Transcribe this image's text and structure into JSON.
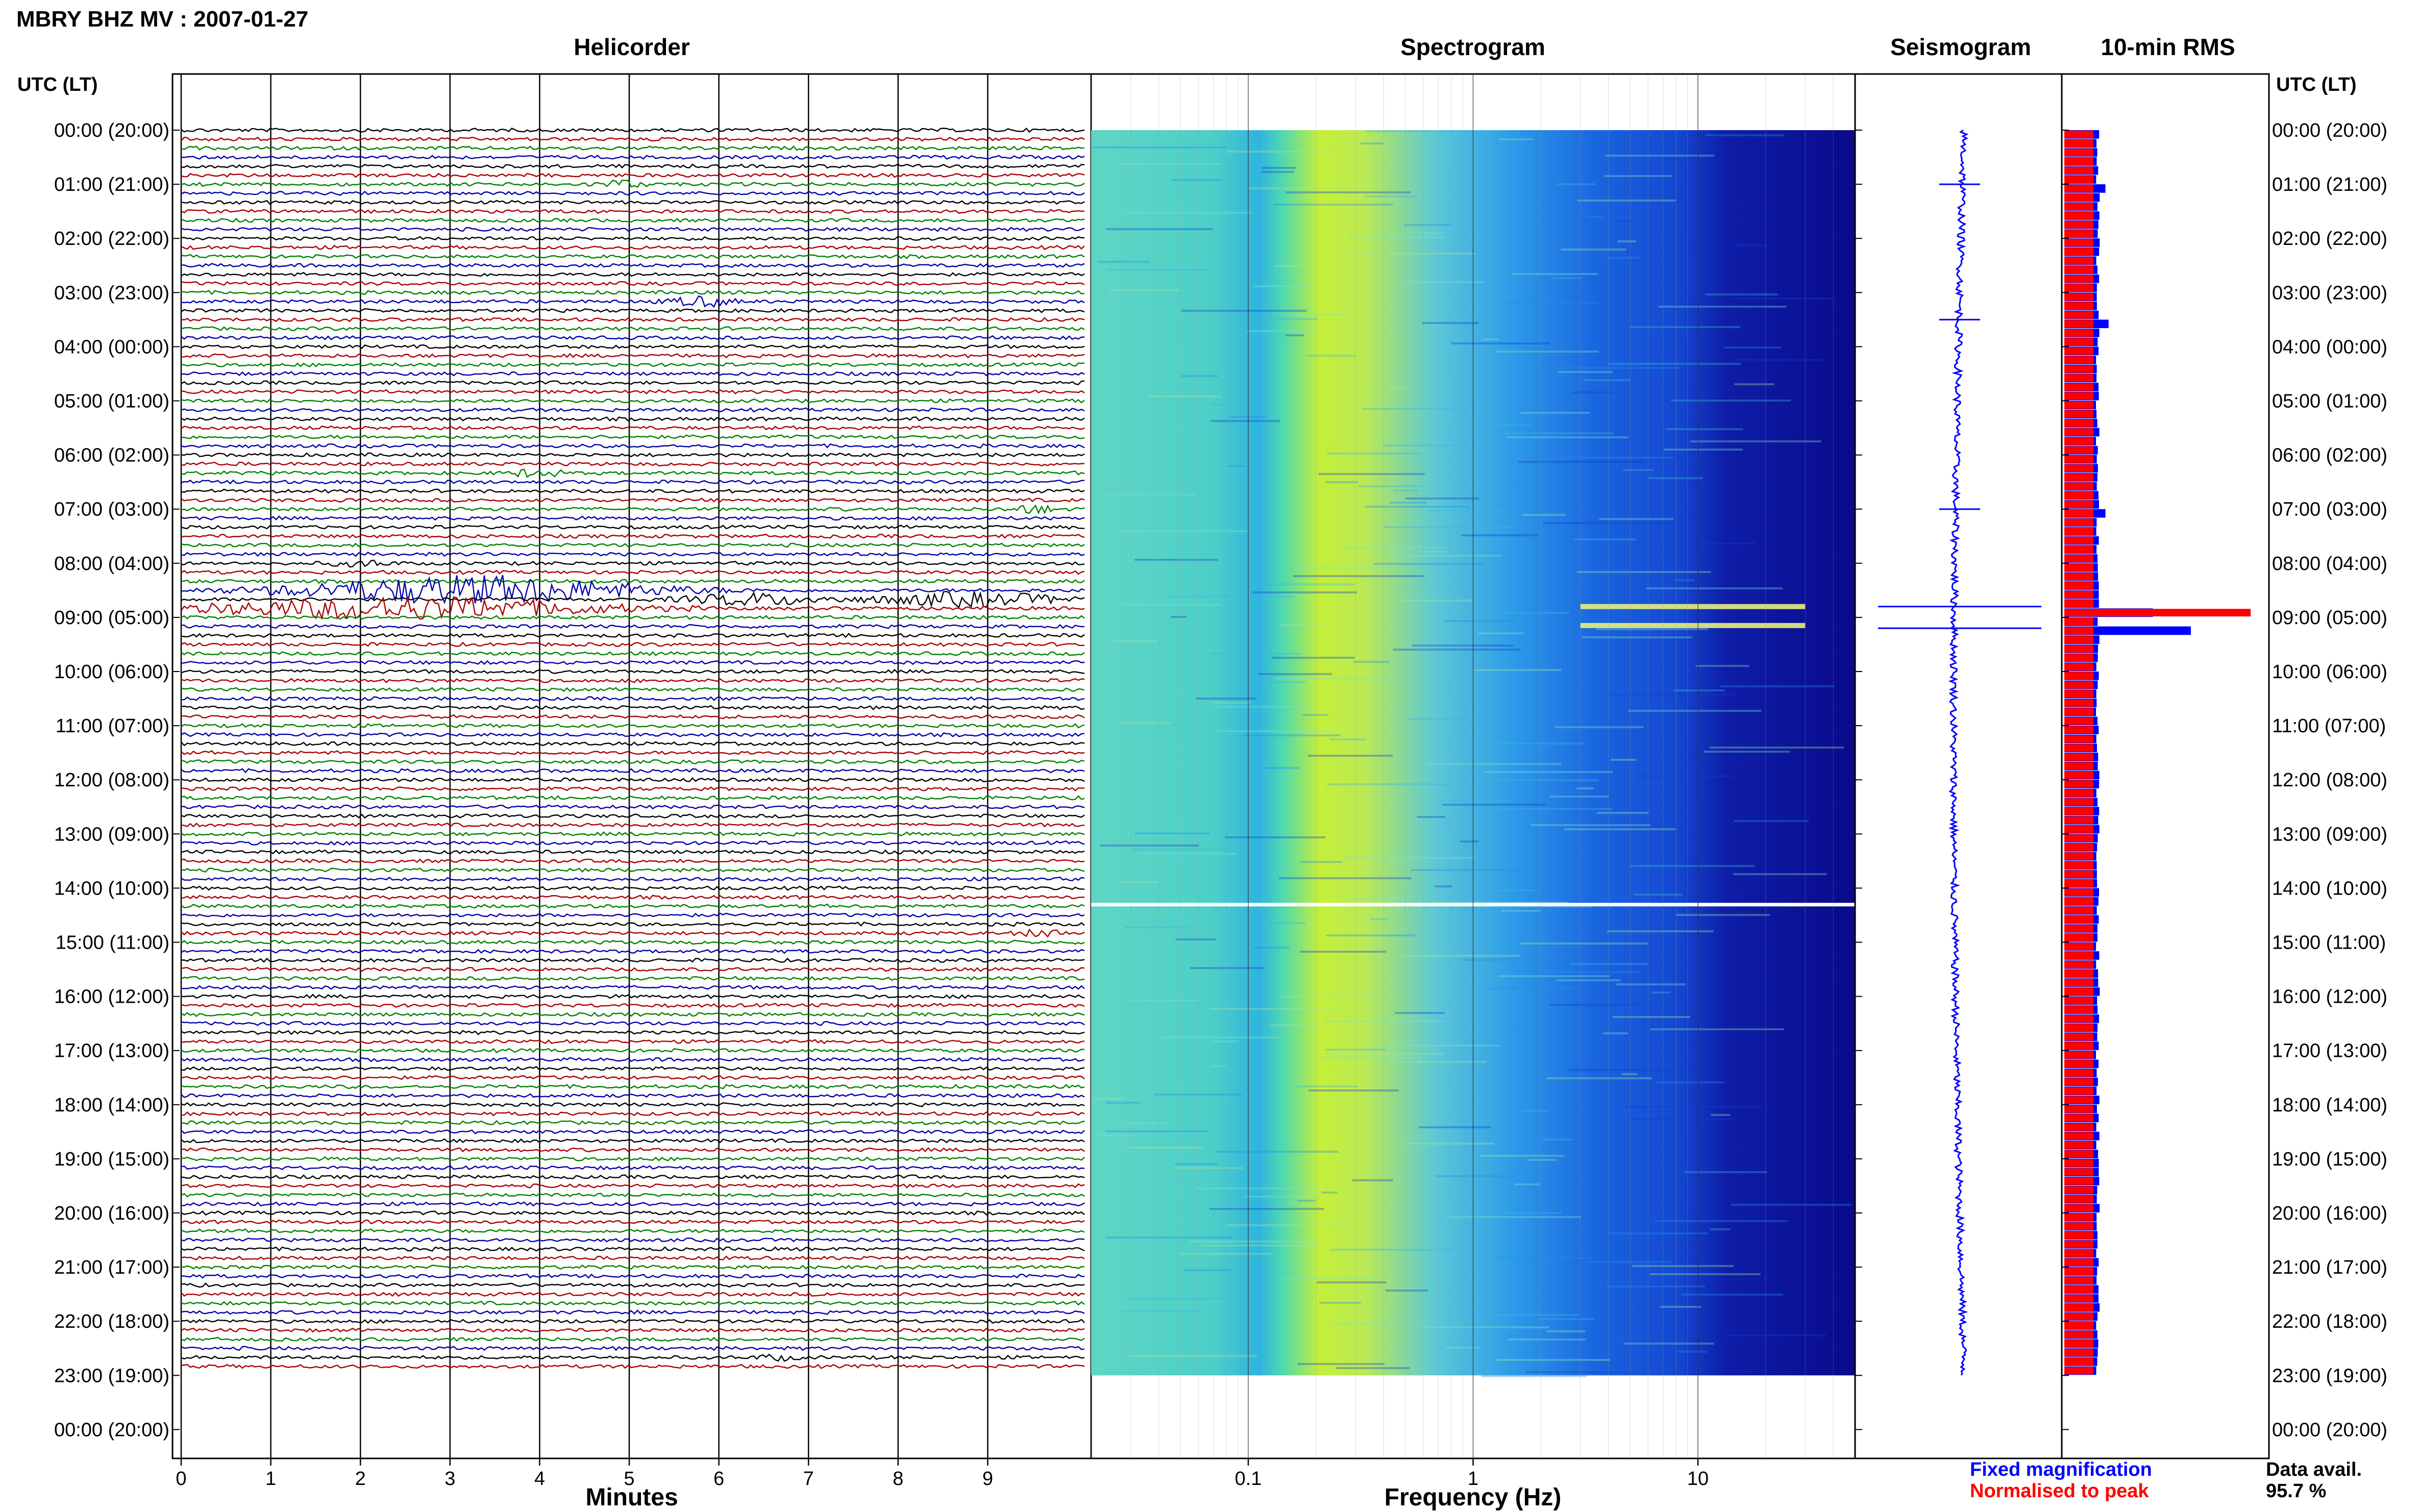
{
  "page": {
    "title": "MBRY BHZ MV : 2007-01-27"
  },
  "panels": {
    "helicorder": "Helicorder",
    "spectrogram": "Spectrogram",
    "seismogram": "Seismogram",
    "rms": "10-min RMS"
  },
  "axis": {
    "time_header": "UTC (LT)",
    "time_labels": [
      "00:00 (20:00)",
      "01:00 (21:00)",
      "02:00 (22:00)",
      "03:00 (23:00)",
      "04:00 (00:00)",
      "05:00 (01:00)",
      "06:00 (02:00)",
      "07:00 (03:00)",
      "08:00 (04:00)",
      "09:00 (05:00)",
      "10:00 (06:00)",
      "11:00 (07:00)",
      "12:00 (08:00)",
      "13:00 (09:00)",
      "14:00 (10:00)",
      "15:00 (11:00)",
      "16:00 (12:00)",
      "17:00 (13:00)",
      "18:00 (14:00)",
      "19:00 (15:00)",
      "20:00 (16:00)",
      "21:00 (17:00)",
      "22:00 (18:00)",
      "23:00 (19:00)",
      "00:00 (20:00)"
    ],
    "minutes_label": "Minutes",
    "minutes_ticks": [
      "0",
      "1",
      "2",
      "3",
      "4",
      "5",
      "6",
      "7",
      "8",
      "9"
    ],
    "frequency_label": "Frequency (Hz)",
    "frequency_ticks": [
      "0.1",
      "1",
      "10"
    ]
  },
  "legend": {
    "fixed": "Fixed magnification",
    "normalised": "Normalised to peak",
    "fixed_color": "#0000ff",
    "normalised_color": "#ff0000"
  },
  "availability": {
    "label": "Data avail.",
    "value": "95.7 %"
  },
  "chart_data": {
    "type": "heatmap",
    "helicorder": {
      "trace_colors": [
        "#000000",
        "#aa0000",
        "#008000",
        "#0000aa"
      ],
      "rows_per_hour": 6,
      "minutes_per_row": 10,
      "data_end_hour": 23,
      "events": [
        {
          "hour": 8.0,
          "minute": 1.6,
          "duration_min": 0.8,
          "amp": 0.5,
          "color_index": 1
        },
        {
          "hour": 8.5,
          "minute": 1.0,
          "duration_min": 4.5,
          "amp": 2.8,
          "color_index": 0
        },
        {
          "hour": 8.67,
          "minute": 5.5,
          "duration_min": 1.8,
          "amp": 1.1,
          "color_index": 1
        },
        {
          "hour": 8.67,
          "minute": 7.6,
          "duration_min": 2.4,
          "amp": 1.3,
          "color_index": 3
        },
        {
          "hour": 8.83,
          "minute": 0.0,
          "duration_min": 5.0,
          "amp": 2.2,
          "color_index": 2
        },
        {
          "hour": 1.0,
          "minute": 4.6,
          "duration_min": 0.6,
          "amp": 0.7,
          "color_index": 0
        },
        {
          "hour": 3.17,
          "minute": 5.4,
          "duration_min": 0.8,
          "amp": 0.9,
          "color_index": 1
        },
        {
          "hour": 6.33,
          "minute": 3.6,
          "duration_min": 0.7,
          "amp": 0.7,
          "color_index": 2
        },
        {
          "hour": 7.0,
          "minute": 9.2,
          "duration_min": 0.6,
          "amp": 0.7,
          "color_index": 3
        },
        {
          "hour": 14.83,
          "minute": 9.3,
          "duration_min": 0.6,
          "amp": 0.6,
          "color_index": 0
        },
        {
          "hour": 22.67,
          "minute": 6.4,
          "duration_min": 0.5,
          "amp": 0.5,
          "color_index": 0
        }
      ]
    },
    "spectrogram": {
      "x_scale": "log",
      "xlim": [
        0.02,
        50
      ],
      "data_end_hour": 23,
      "gap_hour": 14.3,
      "strong_lines_hours": [
        8.8,
        9.15
      ]
    },
    "rms": {
      "interval_min": 10,
      "fixed_hours": [
        0.0,
        1.0,
        3.5,
        7.0,
        8.8,
        9.2
      ],
      "fixed_values": [
        1.1,
        1.3,
        1.4,
        1.3,
        2.8,
        4.0
      ],
      "normalised_peak_hour": 8.8
    },
    "seismogram": {
      "spikes_hours": [
        8.8,
        9.2,
        3.5,
        7.0,
        1.0
      ]
    }
  }
}
